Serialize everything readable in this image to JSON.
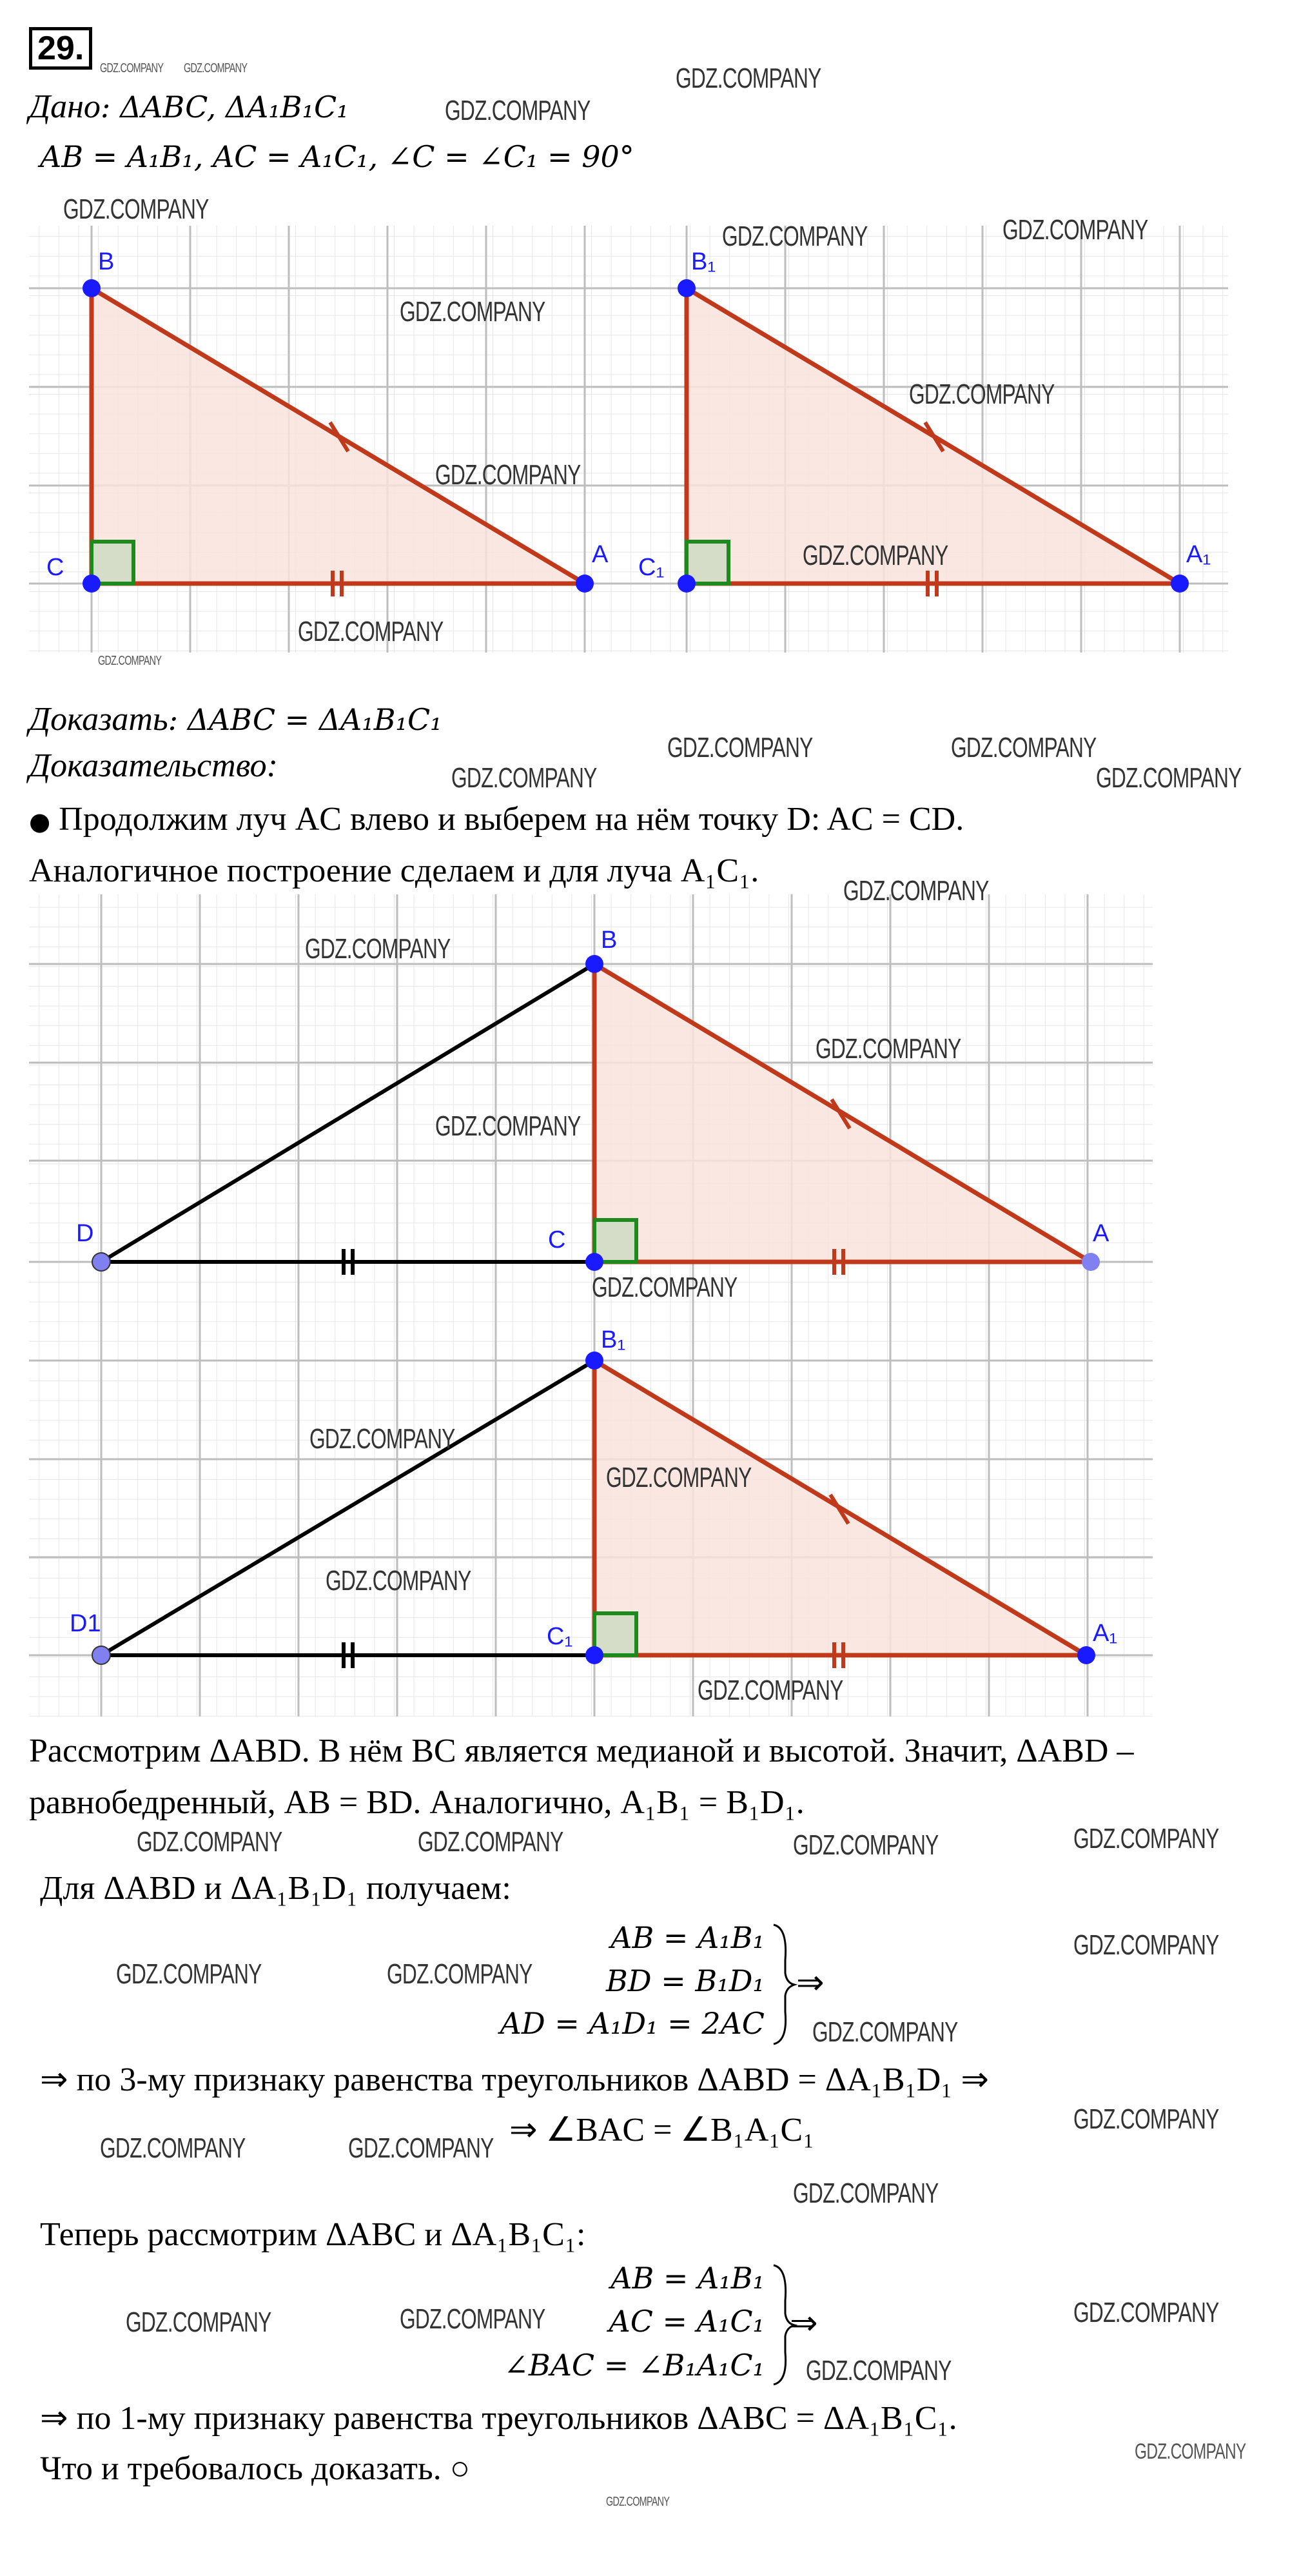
{
  "problem_number": "29.",
  "given": {
    "label": "Дано",
    "line1": ": ΔABC,  ΔA₁B₁C₁",
    "line2": "AB = A₁B₁, AC = A₁C₁, ∠C = ∠C₁ = 90°"
  },
  "figure1": {
    "triangle1": {
      "B": "B",
      "C": "C",
      "A": "A"
    },
    "triangle2": {
      "B": "B₁",
      "C": "C₁",
      "A": "A₁"
    },
    "colors": {
      "side": "#c0391b",
      "fill": "#f9e3dc",
      "point": "#1a1aff",
      "right_angle": "#1e8a1e"
    }
  },
  "prove": {
    "label": "Доказать",
    "statement": ": ΔABC = ΔA₁B₁C₁"
  },
  "proof_label": "Доказательство:",
  "bullet": "●",
  "step1": "Продолжим луч AC влево и выберем на нём точку D: AC = CD.",
  "step1b": "Аналогичное построение сделаем и для луча A₁C₁.",
  "figure2": {
    "top": {
      "D": "D",
      "C": "C",
      "B": "B",
      "A": "A"
    },
    "bottom": {
      "D": "D1",
      "C": "C₁",
      "B": "B₁",
      "A": "A₁"
    }
  },
  "para1_line1": "Рассмотрим ΔABD. В нём BC является медианой и высотой. Значит, ΔABD –",
  "para1_line2": "равнобедренный, AB = BD. Аналогично, A₁B₁ = B₁D₁.",
  "para2": "Для ΔABD и ΔA₁B₁D₁ получаем:",
  "system1": [
    "AB = A₁B₁",
    "BD = B₁D₁",
    "AD = A₁D₁ = 2AC"
  ],
  "implies": "⇒",
  "conclusion1": "⇒ по 3-му признаку равенства треугольников  ΔABD =  ΔA₁B₁D₁ ⇒",
  "conclusion1b": "⇒ ∠BAC = ∠B₁A₁C₁",
  "para3": "Теперь рассмотрим ΔABC и  ΔA₁B₁C₁:",
  "system2": [
    "AB = A₁B₁",
    "AC = A₁C₁",
    "∠BAC = ∠B₁A₁C₁"
  ],
  "conclusion2": "⇒ по 1-му признаку равенства треугольников  ΔABC =  ΔA₁B₁C₁.",
  "qed": "Что и требовалось доказать. ○",
  "watermark": "GDZ.COMPANY"
}
